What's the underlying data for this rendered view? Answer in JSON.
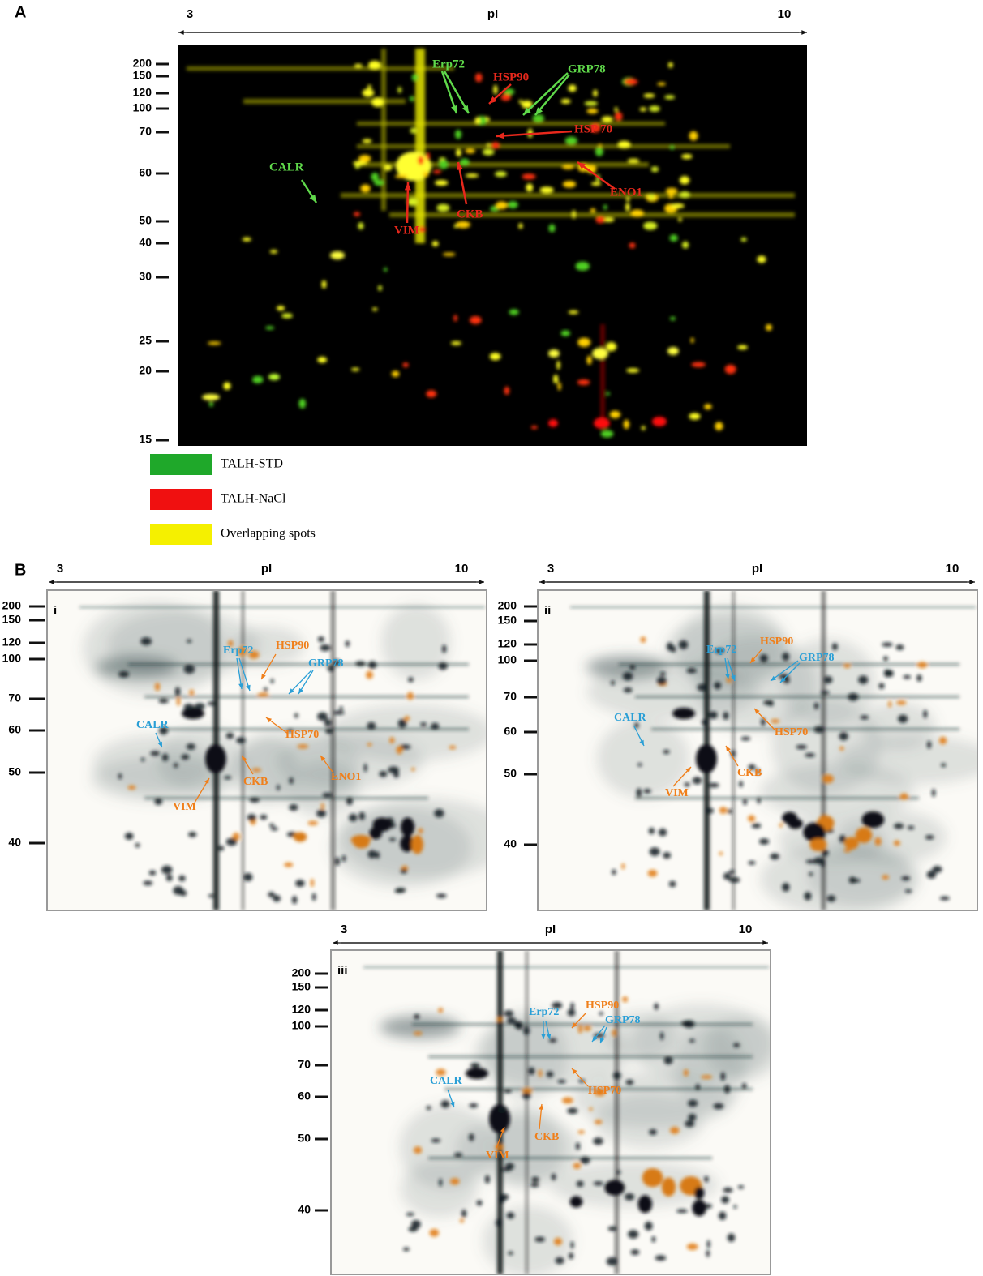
{
  "figure": {
    "panel_a": {
      "label": "A",
      "pi_axis": {
        "start": "3",
        "title": "pI",
        "end": "10"
      },
      "mw_labels": [
        "200",
        "150",
        "120",
        "100",
        "70",
        "60",
        "50",
        "40",
        "30",
        "25",
        "20",
        "15"
      ],
      "annotations": [
        {
          "text": "Erp72",
          "color": "#5fd84a"
        },
        {
          "text": "HSP90",
          "color": "#e8281c"
        },
        {
          "text": "GRP78",
          "color": "#5fd84a"
        },
        {
          "text": "HSP 70",
          "color": "#e8281c"
        },
        {
          "text": "CALR",
          "color": "#5fd84a"
        },
        {
          "text": "ENO1",
          "color": "#e8281c"
        },
        {
          "text": "CKB",
          "color": "#e8281c"
        },
        {
          "text": "VIM",
          "color": "#e8281c"
        }
      ],
      "legend": [
        {
          "label": "TALH-STD",
          "color": "#1fa82a"
        },
        {
          "label": "TALH-NaCl",
          "color": "#f01010"
        },
        {
          "label": "Overlapping spots",
          "color": "#f5f000"
        }
      ]
    },
    "panel_b": {
      "label": "B",
      "gels": [
        {
          "label": "i",
          "pi_axis": {
            "start": "3",
            "title": "pI",
            "end": "10"
          },
          "mw_labels": [
            "200",
            "150",
            "120",
            "100",
            "70",
            "60",
            "50",
            "40"
          ],
          "annotations": [
            {
              "text": "Erp72",
              "color": "#2a9fd6"
            },
            {
              "text": "HSP90",
              "color": "#f07f1a"
            },
            {
              "text": "GRP78",
              "color": "#2a9fd6"
            },
            {
              "text": "CALR",
              "color": "#2a9fd6"
            },
            {
              "text": "HSP70",
              "color": "#f07f1a"
            },
            {
              "text": "ENO1",
              "color": "#f07f1a"
            },
            {
              "text": "CKB",
              "color": "#f07f1a"
            },
            {
              "text": "VIM",
              "color": "#f07f1a"
            }
          ]
        },
        {
          "label": "ii",
          "pi_axis": {
            "start": "3",
            "title": "pI",
            "end": "10"
          },
          "mw_labels": [
            "200",
            "150",
            "120",
            "100",
            "70",
            "60",
            "50",
            "40"
          ],
          "annotations": [
            {
              "text": "Erp72",
              "color": "#2a9fd6"
            },
            {
              "text": "HSP90",
              "color": "#f07f1a"
            },
            {
              "text": "GRP78",
              "color": "#2a9fd6"
            },
            {
              "text": "CALR",
              "color": "#2a9fd6"
            },
            {
              "text": "HSP70",
              "color": "#f07f1a"
            },
            {
              "text": "CKB",
              "color": "#f07f1a"
            },
            {
              "text": "VIM",
              "color": "#f07f1a"
            }
          ]
        },
        {
          "label": "iii",
          "pi_axis": {
            "start": "3",
            "title": "pI",
            "end": "10"
          },
          "mw_labels": [
            "200",
            "150",
            "120",
            "100",
            "70",
            "60",
            "50",
            "40"
          ],
          "annotations": [
            {
              "text": "Erp72",
              "color": "#2a9fd6"
            },
            {
              "text": "HSP90",
              "color": "#f07f1a"
            },
            {
              "text": "GRP78",
              "color": "#2a9fd6"
            },
            {
              "text": "CALR",
              "color": "#2a9fd6"
            },
            {
              "text": "HSP70",
              "color": "#f07f1a"
            },
            {
              "text": "CKB",
              "color": "#f07f1a"
            },
            {
              "text": "VIM",
              "color": "#f07f1a"
            }
          ]
        }
      ]
    }
  }
}
